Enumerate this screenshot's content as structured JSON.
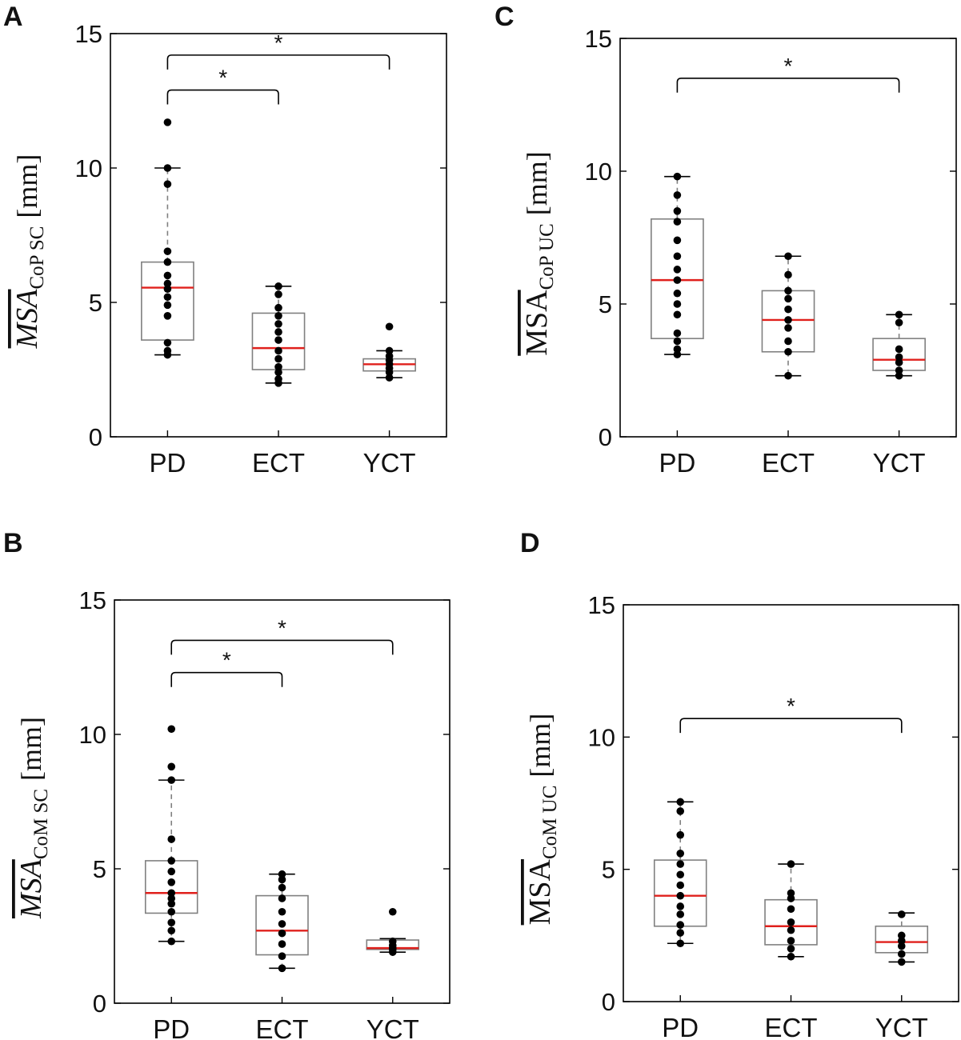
{
  "colors": {
    "median": "#e0201c",
    "box": "#808080",
    "point": "#000000",
    "axis": "#000000"
  },
  "chart_data": [
    {
      "panel": "A",
      "type": "box",
      "categories": [
        "PD",
        "ECT",
        "YCT"
      ],
      "ylim": [
        0,
        15
      ],
      "yticks": [
        "0",
        "5",
        "10",
        "15"
      ],
      "ylabel": {
        "main": "MSA",
        "sub": "CoP SC",
        "unit": "[mm]",
        "italic": true
      },
      "boxes": [
        {
          "q1": 3.6,
          "median": 5.55,
          "q3": 6.5,
          "whisker_low": 3.05,
          "whisker_high": 10.0
        },
        {
          "q1": 2.5,
          "median": 3.3,
          "q3": 4.6,
          "whisker_low": 2.0,
          "whisker_high": 5.6
        },
        {
          "q1": 2.45,
          "median": 2.7,
          "q3": 2.9,
          "whisker_low": 2.2,
          "whisker_high": 3.2
        }
      ],
      "points": [
        [
          3.05,
          3.2,
          3.5,
          4.5,
          4.9,
          5.2,
          5.5,
          5.7,
          6.0,
          6.5,
          6.9,
          9.4,
          10.0,
          11.7
        ],
        [
          2.0,
          2.15,
          2.4,
          2.6,
          2.9,
          3.2,
          3.6,
          3.9,
          4.2,
          4.5,
          4.8,
          5.3,
          5.6
        ],
        [
          2.2,
          2.4,
          2.55,
          2.7,
          2.85,
          3.0,
          3.2,
          4.1
        ]
      ],
      "significance": [
        {
          "from": "PD",
          "to": "ECT",
          "level": 12.9,
          "label": "*"
        },
        {
          "from": "PD",
          "to": "YCT",
          "level": 14.2,
          "label": "*"
        }
      ]
    },
    {
      "panel": "B",
      "type": "box",
      "categories": [
        "PD",
        "ECT",
        "YCT"
      ],
      "ylim": [
        0,
        15
      ],
      "yticks": [
        "0",
        "5",
        "10",
        "15"
      ],
      "ylabel": {
        "main": "MSA",
        "sub": "CoM SC",
        "unit": "[mm]",
        "italic": true
      },
      "boxes": [
        {
          "q1": 3.35,
          "median": 4.1,
          "q3": 5.3,
          "whisker_low": 2.3,
          "whisker_high": 8.3
        },
        {
          "q1": 1.8,
          "median": 2.7,
          "q3": 4.0,
          "whisker_low": 1.3,
          "whisker_high": 4.8
        },
        {
          "q1": 2.0,
          "median": 2.05,
          "q3": 2.35,
          "whisker_low": 1.9,
          "whisker_high": 2.4
        }
      ],
      "points": [
        [
          2.3,
          2.7,
          3.0,
          3.4,
          3.7,
          3.9,
          4.1,
          4.5,
          4.9,
          5.3,
          6.1,
          8.3,
          8.8,
          10.2
        ],
        [
          1.3,
          1.75,
          2.2,
          2.6,
          2.95,
          3.4,
          3.9,
          4.3,
          4.6,
          4.8
        ],
        [
          1.9,
          2.0,
          2.05,
          2.15,
          2.3,
          3.4
        ]
      ],
      "significance": [
        {
          "from": "PD",
          "to": "ECT",
          "level": 12.3,
          "label": "*"
        },
        {
          "from": "PD",
          "to": "YCT",
          "level": 13.5,
          "label": "*"
        }
      ]
    },
    {
      "panel": "C",
      "type": "box",
      "categories": [
        "PD",
        "ECT",
        "YCT"
      ],
      "ylim": [
        0,
        15
      ],
      "yticks": [
        "0",
        "5",
        "10",
        "15"
      ],
      "ylabel": {
        "main": "MSA",
        "sub": "CoP UC",
        "unit": "[mm]",
        "italic": false
      },
      "boxes": [
        {
          "q1": 3.7,
          "median": 5.9,
          "q3": 8.2,
          "whisker_low": 3.1,
          "whisker_high": 9.8
        },
        {
          "q1": 3.2,
          "median": 4.4,
          "q3": 5.5,
          "whisker_low": 2.3,
          "whisker_high": 6.8
        },
        {
          "q1": 2.5,
          "median": 2.9,
          "q3": 3.7,
          "whisker_low": 2.3,
          "whisker_high": 4.6
        }
      ],
      "points": [
        [
          3.1,
          3.3,
          3.6,
          3.9,
          4.6,
          5.0,
          5.4,
          5.9,
          6.3,
          6.8,
          7.4,
          8.1,
          8.5,
          9.1,
          9.8
        ],
        [
          2.3,
          3.2,
          3.6,
          4.1,
          4.4,
          4.8,
          5.2,
          5.5,
          6.1,
          6.8
        ],
        [
          2.3,
          2.5,
          2.8,
          3.0,
          3.3,
          4.3,
          4.6
        ]
      ],
      "significance": [
        {
          "from": "PD",
          "to": "YCT",
          "level": 13.5,
          "label": "*"
        }
      ]
    },
    {
      "panel": "D",
      "type": "box",
      "categories": [
        "PD",
        "ECT",
        "YCT"
      ],
      "ylim": [
        0,
        15
      ],
      "yticks": [
        "0",
        "5",
        "10",
        "15"
      ],
      "ylabel": {
        "main": "MSA",
        "sub": "CoM UC",
        "unit": "[mm]",
        "italic": false
      },
      "boxes": [
        {
          "q1": 2.85,
          "median": 4.0,
          "q3": 5.35,
          "whisker_low": 2.2,
          "whisker_high": 7.55
        },
        {
          "q1": 2.15,
          "median": 2.85,
          "q3": 3.85,
          "whisker_low": 1.7,
          "whisker_high": 5.2
        },
        {
          "q1": 1.85,
          "median": 2.25,
          "q3": 2.85,
          "whisker_low": 1.5,
          "whisker_high": 3.35
        }
      ],
      "points": [
        [
          2.2,
          2.6,
          2.9,
          3.3,
          3.6,
          4.0,
          4.4,
          4.8,
          5.2,
          5.6,
          6.3,
          7.2,
          7.55
        ],
        [
          1.7,
          2.0,
          2.3,
          2.7,
          3.0,
          3.5,
          3.9,
          4.1,
          5.2
        ],
        [
          1.5,
          1.8,
          2.1,
          2.3,
          2.5,
          3.3
        ]
      ],
      "significance": [
        {
          "from": "PD",
          "to": "YCT",
          "level": 10.7,
          "label": "*"
        }
      ]
    }
  ]
}
